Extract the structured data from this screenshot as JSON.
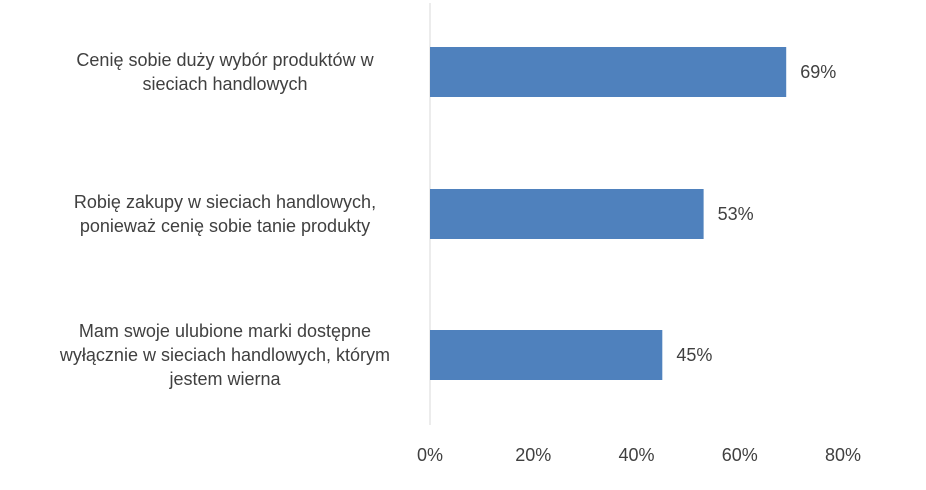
{
  "chart_data": {
    "type": "bar",
    "orientation": "horizontal",
    "categories": [
      [
        "Cenię sobie duży wybór produktów w",
        "sieciach handlowych"
      ],
      [
        "Robię zakupy w sieciach handlowych,",
        "ponieważ cenię sobie tanie produkty"
      ],
      [
        "Mam swoje ulubione marki dostępne",
        "wyłącznie w sieciach handlowych, którym",
        "jestem wierna"
      ]
    ],
    "values": [
      69,
      53,
      45
    ],
    "data_labels": [
      "69%",
      "53%",
      "45%"
    ],
    "x_ticks": [
      "0%",
      "20%",
      "40%",
      "60%",
      "80%"
    ],
    "xlim": [
      0,
      80
    ],
    "grid": false,
    "bar_color": "#4f81bd",
    "axis_color": "#d9d9d9"
  }
}
